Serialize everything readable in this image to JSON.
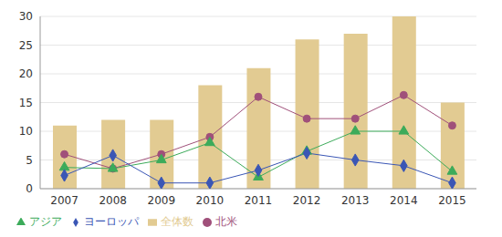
{
  "chart_data": {
    "type": "bar",
    "categories": [
      "2007",
      "2008",
      "2009",
      "2010",
      "2011",
      "2012",
      "2013",
      "2014",
      "2015"
    ],
    "series": [
      {
        "name": "全体数",
        "type": "bar",
        "color": "#e2cb92",
        "values": [
          11,
          12,
          12,
          18,
          21,
          26,
          27,
          30,
          15
        ]
      },
      {
        "name": "北米",
        "type": "line",
        "color": "#a0507a",
        "marker": "circle",
        "values": [
          6,
          3.5,
          6,
          9,
          16,
          12.2,
          12.2,
          16.3,
          11
        ]
      },
      {
        "name": "アジア",
        "type": "line",
        "color": "#3cab5a",
        "marker": "triangle",
        "values": [
          3.7,
          3.5,
          5,
          8,
          2,
          6.5,
          10,
          10,
          3
        ]
      },
      {
        "name": "ヨーロッパ",
        "type": "line",
        "color": "#3a56b5",
        "marker": "diamond",
        "values": [
          2.3,
          5.8,
          1,
          1,
          3.2,
          6.2,
          5,
          4,
          1
        ]
      }
    ],
    "ylim": [
      0,
      30
    ],
    "yticks": [
      0,
      5,
      10,
      15,
      20,
      25,
      30
    ],
    "grid": true,
    "legend": "bottom"
  }
}
